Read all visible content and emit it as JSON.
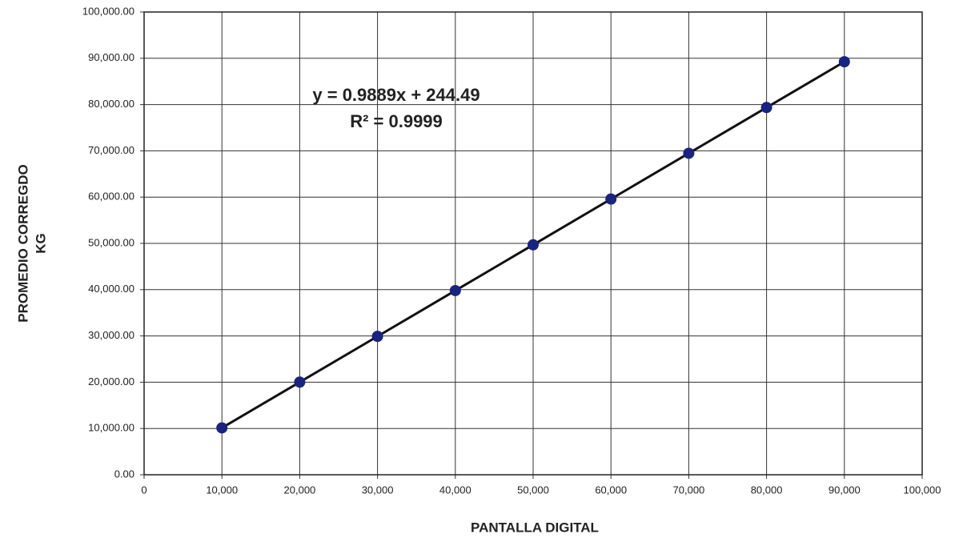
{
  "chart_data": {
    "type": "scatter",
    "x_label": "PANTALLA DIGITAL",
    "y_label": [
      "PROMEDIO CORREGDO",
      "KG"
    ],
    "annotations": [
      "y = 0.9889x + 244.49",
      "R² = 0.9999"
    ],
    "series": [
      {
        "name": "PROMEDIO CORREGDO",
        "color": "#1a237e",
        "x": [
          10000,
          20000,
          30000,
          40000,
          50000,
          60000,
          70000,
          80000,
          90000
        ],
        "values": [
          10130,
          20020,
          29910,
          39800,
          49690,
          59580,
          69470,
          79360,
          89250
        ]
      }
    ],
    "line_color": "#111111",
    "xlim": [
      0,
      100000
    ],
    "xticks": [
      0,
      {
        "value": 10000,
        "label": "10,000"
      },
      {
        "value": 20000,
        "label": "20,000"
      },
      {
        "value": 30000,
        "label": "30,000"
      },
      {
        "value": 40000,
        "label": "40,000"
      },
      {
        "value": 50000,
        "label": "50,000"
      },
      {
        "value": 60000,
        "label": "60,000"
      },
      {
        "value": 70000,
        "label": "70,000"
      },
      {
        "value": 80000,
        "label": "80,000"
      },
      {
        "value": 90000,
        "label": "90,000"
      },
      {
        "value": 100000,
        "label": "100,000"
      }
    ],
    "ylim": [
      0,
      100000
    ],
    "yticks": [
      {
        "value": 0,
        "label": "0.00"
      },
      {
        "value": 10000,
        "label": "10,000.00"
      },
      {
        "value": 20000,
        "label": "20,000.00"
      },
      {
        "value": 30000,
        "label": "30,000.00"
      },
      {
        "value": 40000,
        "label": "40,000.00"
      },
      {
        "value": 50000,
        "label": "50,000.00"
      },
      {
        "value": 60000,
        "label": "60,000.00"
      },
      {
        "value": 70000,
        "label": "70,000.00"
      },
      {
        "value": 80000,
        "label": "80,000.00"
      },
      {
        "value": 90000,
        "label": "90,000.00"
      },
      {
        "value": 100000,
        "label": "100,000.00"
      }
    ],
    "grid": true
  }
}
